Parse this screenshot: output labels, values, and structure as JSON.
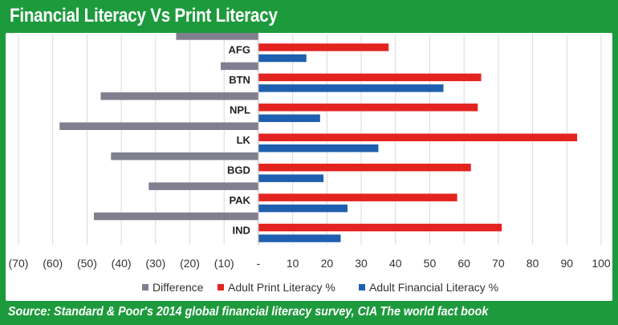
{
  "title": "Financial Literacy Vs Print Literacy",
  "source": "Source: Standard & Poor's 2014 global financial literacy survey, CIA The world fact book",
  "chart_data": {
    "type": "bar",
    "orientation": "horizontal",
    "categories": [
      "AFG",
      "BTN",
      "NPL",
      "LK",
      "BGD",
      "PAK",
      "IND"
    ],
    "series": [
      {
        "name": "Difference",
        "color": "#7f7f8f",
        "values": [
          -24,
          -11,
          -46,
          -58,
          -43,
          -32,
          -48
        ]
      },
      {
        "name": "Adult Print Literacy %",
        "color": "#e3231f",
        "values": [
          38,
          65,
          64,
          93,
          62,
          58,
          71
        ]
      },
      {
        "name": "Adult Financial Literacy %",
        "color": "#1f5fb0",
        "values": [
          14,
          54,
          18,
          35,
          19,
          26,
          24
        ]
      }
    ],
    "xlim": [
      -70,
      100
    ],
    "xticks": [
      -70,
      -60,
      -50,
      -40,
      -30,
      -20,
      -10,
      0,
      10,
      20,
      30,
      40,
      50,
      60,
      70,
      80,
      90,
      100
    ],
    "xtick_labels": [
      "(70)",
      "(60)",
      "(50)",
      "(40)",
      "(30)",
      "(20)",
      "(10)",
      "-",
      "10",
      "20",
      "30",
      "40",
      "50",
      "60",
      "70",
      "80",
      "90",
      "100"
    ],
    "grid": true,
    "legend_position": "bottom"
  }
}
